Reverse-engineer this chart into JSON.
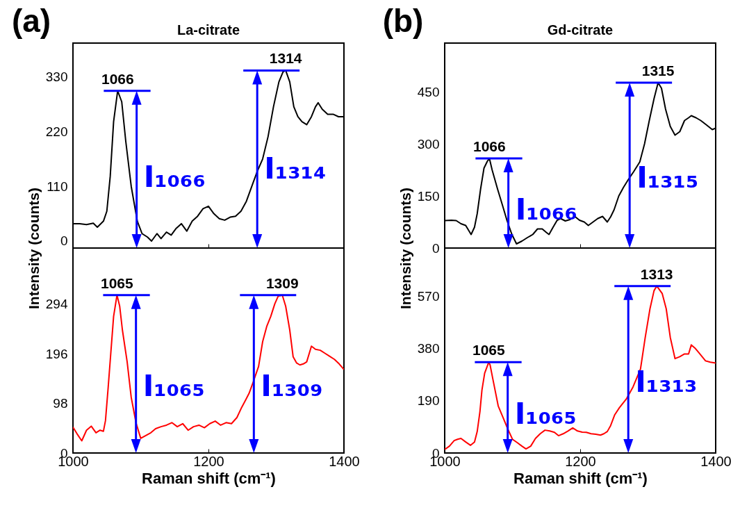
{
  "chart_data": [
    {
      "type": "line",
      "title": "La-citrate",
      "ylabel": "Intensity (counts)",
      "tick_labels": "y",
      "grid": false,
      "xlim": [
        1000,
        1400
      ],
      "xticks": [
        1000,
        1200,
        1400
      ],
      "ylim": [
        -14,
        398
      ],
      "yticks": [
        0,
        110,
        220,
        330
      ],
      "annotations": [
        "(a)",
        {
          "text": "1066",
          "x": 1066,
          "y": 302
        },
        "I₁₀₆₆",
        {
          "text": "1314",
          "x": 1314,
          "y": 343
        },
        "I₁₃₁₄"
      ],
      "series": [
        {
          "color": "#000000",
          "x": [
            1000,
            1010,
            1020,
            1030,
            1036,
            1045,
            1050,
            1055,
            1060,
            1066,
            1072,
            1078,
            1086,
            1095,
            1102,
            1110,
            1116,
            1124,
            1130,
            1138,
            1145,
            1152,
            1160,
            1168,
            1176,
            1184,
            1192,
            1200,
            1208,
            1216,
            1224,
            1232,
            1240,
            1248,
            1256,
            1264,
            1272,
            1280,
            1288,
            1296,
            1304,
            1310,
            1314,
            1320,
            1326,
            1332,
            1338,
            1345,
            1352,
            1358,
            1362,
            1368,
            1376,
            1384,
            1392,
            1400
          ],
          "values": [
            35,
            35,
            33,
            36,
            28,
            40,
            60,
            130,
            240,
            302,
            280,
            200,
            110,
            40,
            15,
            8,
            0,
            15,
            5,
            18,
            12,
            25,
            35,
            20,
            40,
            50,
            65,
            70,
            55,
            45,
            42,
            48,
            50,
            60,
            80,
            110,
            140,
            165,
            210,
            270,
            320,
            340,
            343,
            320,
            270,
            250,
            240,
            234,
            250,
            270,
            278,
            265,
            255,
            255,
            250,
            250
          ]
        }
      ]
    },
    {
      "type": "line",
      "xlabel": "Raman shift (cm⁻¹)",
      "grid": false,
      "xlim": [
        1000,
        1400
      ],
      "xticks": [
        1000,
        1200,
        1400
      ],
      "ylim": [
        0,
        405
      ],
      "yticks": [
        0,
        98,
        196,
        294
      ],
      "annotations": [
        {
          "text": "1065",
          "x": 1065,
          "y": 312
        },
        "I₁₀₆₅",
        {
          "text": "1309",
          "x": 1309,
          "y": 312
        },
        "I₁₃₀₉"
      ],
      "series": [
        {
          "color": "#ff0000",
          "x": [
            1000,
            1006,
            1013,
            1020,
            1027,
            1034,
            1040,
            1045,
            1048,
            1052,
            1056,
            1060,
            1065,
            1069,
            1073,
            1080,
            1086,
            1093,
            1100,
            1108,
            1115,
            1122,
            1130,
            1138,
            1146,
            1154,
            1162,
            1170,
            1178,
            1186,
            1194,
            1202,
            1210,
            1218,
            1226,
            1234,
            1242,
            1249,
            1255,
            1260,
            1266,
            1274,
            1280,
            1286,
            1292,
            1298,
            1303,
            1309,
            1314,
            1320,
            1325,
            1330,
            1335,
            1340,
            1345,
            1352,
            1358,
            1365,
            1372,
            1379,
            1386,
            1393,
            1400
          ],
          "values": [
            51,
            38,
            24,
            45,
            53,
            40,
            45,
            43,
            64,
            130,
            200,
            270,
            312,
            290,
            243,
            180,
            110,
            60,
            29,
            35,
            40,
            48,
            52,
            55,
            60,
            52,
            58,
            45,
            52,
            55,
            50,
            58,
            63,
            55,
            60,
            58,
            70,
            90,
            105,
            118,
            140,
            171,
            220,
            250,
            270,
            295,
            310,
            312,
            290,
            243,
            190,
            178,
            174,
            176,
            180,
            211,
            205,
            203,
            197,
            191,
            185,
            176,
            165
          ]
        }
      ]
    },
    {
      "type": "line",
      "title": "Gd-citrate",
      "ylabel": "Intensity (counts)",
      "tick_labels": "y",
      "grid": false,
      "xlim": [
        1000,
        1400
      ],
      "xticks": [
        1000,
        1200,
        1400
      ],
      "ylim": [
        0,
        590
      ],
      "yticks": [
        0,
        150,
        300,
        450
      ],
      "annotations": [
        "(b)",
        {
          "text": "1066",
          "x": 1066,
          "y": 258
        },
        "I₁₀₆₆",
        {
          "text": "1315",
          "x": 1315,
          "y": 476
        },
        "I₁₃₁₅"
      ],
      "series": [
        {
          "color": "#000000",
          "x": [
            1000,
            1010,
            1017,
            1024,
            1031,
            1039,
            1044,
            1048,
            1053,
            1058,
            1063,
            1066,
            1070,
            1078,
            1085,
            1092,
            1099,
            1106,
            1114,
            1122,
            1130,
            1137,
            1144,
            1150,
            1154,
            1160,
            1166,
            1171,
            1178,
            1185,
            1192,
            1199,
            1206,
            1212,
            1219,
            1226,
            1233,
            1240,
            1245,
            1250,
            1257,
            1264,
            1271,
            1279,
            1288,
            1295,
            1302,
            1309,
            1315,
            1320,
            1326,
            1333,
            1340,
            1347,
            1354,
            1360,
            1364,
            1371,
            1378,
            1386,
            1395,
            1400
          ],
          "values": [
            79,
            80,
            79,
            70,
            65,
            39,
            60,
            99,
            170,
            230,
            250,
            258,
            225,
            170,
            125,
            79,
            40,
            12,
            20,
            30,
            39,
            55,
            55,
            45,
            39,
            60,
            80,
            85,
            78,
            82,
            91,
            80,
            75,
            65,
            75,
            85,
            91,
            75,
            90,
            110,
            150,
            175,
            197,
            220,
            248,
            300,
            367,
            430,
            476,
            460,
            400,
            350,
            325,
            335,
            367,
            375,
            381,
            375,
            367,
            355,
            341,
            345
          ]
        }
      ]
    },
    {
      "type": "line",
      "xlabel": "Raman shift (cm⁻¹)",
      "grid": false,
      "xlim": [
        1000,
        1400
      ],
      "xticks": [
        1000,
        1200,
        1400
      ],
      "ylim": [
        0,
        745
      ],
      "yticks": [
        0,
        190,
        380,
        570
      ],
      "annotations": [
        {
          "text": "1065",
          "x": 1065,
          "y": 330
        },
        "I₁₀₆₅",
        {
          "text": "1313",
          "x": 1313,
          "y": 607
        },
        "I₁₃₁₃"
      ],
      "series": [
        {
          "color": "#ff0000",
          "x": [
            1000,
            1007,
            1014,
            1019,
            1024,
            1031,
            1038,
            1044,
            1048,
            1052,
            1055,
            1059,
            1065,
            1067,
            1071,
            1079,
            1086,
            1093,
            1100,
            1107,
            1114,
            1120,
            1127,
            1134,
            1141,
            1148,
            1155,
            1162,
            1168,
            1175,
            1182,
            1189,
            1196,
            1203,
            1209,
            1216,
            1223,
            1230,
            1235,
            1240,
            1245,
            1251,
            1258,
            1268,
            1278,
            1289,
            1296,
            1303,
            1309,
            1313,
            1321,
            1327,
            1333,
            1340,
            1347,
            1354,
            1360,
            1364,
            1370,
            1375,
            1380,
            1385,
            1392,
            1400
          ],
          "values": [
            13,
            25,
            45,
            50,
            53,
            40,
            28,
            40,
            78,
            150,
            229,
            290,
            330,
            320,
            270,
            171,
            130,
            88,
            50,
            38,
            25,
            15,
            25,
            53,
            70,
            83,
            80,
            75,
            63,
            70,
            80,
            91,
            80,
            76,
            75,
            70,
            68,
            65,
            70,
            78,
            100,
            139,
            165,
            196,
            240,
            305,
            420,
            524,
            590,
            607,
            580,
            524,
            420,
            343,
            350,
            360,
            360,
            393,
            380,
            365,
            350,
            335,
            330,
            327
          ]
        }
      ]
    }
  ]
}
